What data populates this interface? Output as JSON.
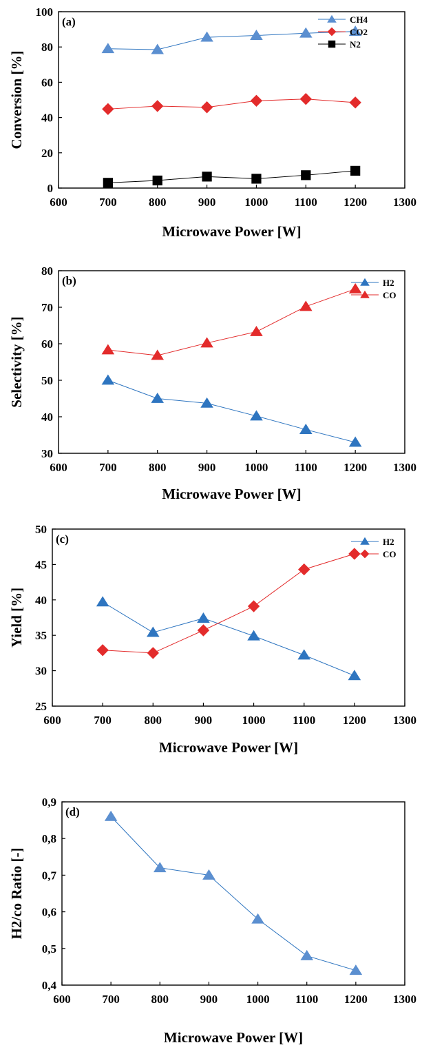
{
  "colors": {
    "blue": "#2e75c0",
    "blue_marker": "#5b8fd0",
    "red": "#e32b2b",
    "black": "#000000"
  },
  "chart_data": [
    {
      "type": "line",
      "panel_label": "(a)",
      "xlabel": "Microwave Power [W]",
      "ylabel": "Conversion [%]",
      "xlim": [
        600,
        1300
      ],
      "ylim": [
        0,
        100
      ],
      "xticks": [
        600,
        700,
        800,
        900,
        1000,
        1100,
        1200,
        1300
      ],
      "yticks": [
        0,
        20,
        40,
        60,
        80,
        100
      ],
      "xtick_labels": [
        "600",
        "700",
        "800",
        "900",
        "1000",
        "1100",
        "1200",
        "1300"
      ],
      "ytick_labels": [
        "0",
        "20",
        "40",
        "60",
        "80",
        "100"
      ],
      "legend_position": "top-right",
      "x": [
        700,
        800,
        900,
        1000,
        1100,
        1200
      ],
      "series": [
        {
          "name": "CH4",
          "values": [
            79,
            78.5,
            85.5,
            86.5,
            87.8,
            88.8
          ],
          "marker": "triangle",
          "color": "#5b8fd0",
          "line_color": "#2e75c0"
        },
        {
          "name": "CO2",
          "values": [
            44.8,
            46.5,
            45.8,
            49.5,
            50.5,
            48.5
          ],
          "marker": "diamond",
          "color": "#e32b2b",
          "line_color": "#e32b2b"
        },
        {
          "name": "N2",
          "values": [
            3,
            4.3,
            6.5,
            5.3,
            7.3,
            9.8
          ],
          "marker": "square",
          "color": "#000000",
          "line_color": "#000000"
        }
      ]
    },
    {
      "type": "line",
      "panel_label": "(b)",
      "xlabel": "Microwave Power [W]",
      "ylabel": "Selectivity [%]",
      "xlim": [
        600,
        1300
      ],
      "ylim": [
        30,
        80
      ],
      "xticks": [
        600,
        700,
        800,
        900,
        1000,
        1100,
        1200,
        1300
      ],
      "yticks": [
        30,
        40,
        50,
        60,
        70,
        80
      ],
      "xtick_labels": [
        "600",
        "700",
        "800",
        "900",
        "1000",
        "1100",
        "1200",
        "1300"
      ],
      "ytick_labels": [
        "30",
        "40",
        "50",
        "60",
        "70",
        "80"
      ],
      "legend_position": "top-right",
      "x": [
        700,
        800,
        900,
        1000,
        1100,
        1200
      ],
      "series": [
        {
          "name": "H2",
          "values": [
            50,
            45,
            43.7,
            40.2,
            36.5,
            33
          ],
          "marker": "triangle",
          "color": "#2e75c0",
          "line_color": "#2e75c0"
        },
        {
          "name": "CO",
          "values": [
            58.3,
            56.8,
            60.2,
            63.3,
            70.2,
            75
          ],
          "marker": "triangle",
          "color": "#e32b2b",
          "line_color": "#e32b2b"
        }
      ]
    },
    {
      "type": "line",
      "panel_label": "(c)",
      "xlabel": "Microwave Power [W]",
      "ylabel": "Yield [%]",
      "xlim": [
        600,
        1300
      ],
      "ylim": [
        25,
        50
      ],
      "xticks": [
        600,
        700,
        800,
        900,
        1000,
        1100,
        1200,
        1300
      ],
      "yticks": [
        25,
        30,
        35,
        40,
        45,
        50
      ],
      "xtick_labels": [
        "600",
        "700",
        "800",
        "900",
        "1000",
        "1100",
        "1200",
        "1300"
      ],
      "ytick_labels": [
        "25",
        "30",
        "35",
        "40",
        "45",
        "50"
      ],
      "legend_position": "top-right",
      "x": [
        700,
        800,
        900,
        1000,
        1100,
        1200
      ],
      "series": [
        {
          "name": "H2",
          "values": [
            39.7,
            35.4,
            37.4,
            34.9,
            32.2,
            29.3
          ],
          "marker": "triangle",
          "color": "#2e75c0",
          "line_color": "#2e75c0"
        },
        {
          "name": "CO",
          "values": [
            32.9,
            32.5,
            35.7,
            39.1,
            44.3,
            46.5
          ],
          "marker": "diamond",
          "color": "#e32b2b",
          "line_color": "#e32b2b"
        }
      ]
    },
    {
      "type": "line",
      "panel_label": "(d)",
      "xlabel": "Microwave Power [W]",
      "ylabel": "H2/co Ratio [-]",
      "xlim": [
        600,
        1300
      ],
      "ylim": [
        0.4,
        0.9
      ],
      "xticks": [
        600,
        700,
        800,
        900,
        1000,
        1100,
        1200,
        1300
      ],
      "yticks": [
        0.4,
        0.5,
        0.6,
        0.7,
        0.8,
        0.9
      ],
      "xtick_labels": [
        "600",
        "700",
        "800",
        "900",
        "1000",
        "1100",
        "1200",
        "1300"
      ],
      "ytick_labels": [
        "0,4",
        "0,5",
        "0,6",
        "0,7",
        "0,8",
        "0,9"
      ],
      "legend_position": "none",
      "x": [
        700,
        800,
        900,
        1000,
        1100,
        1200
      ],
      "series": [
        {
          "name": "",
          "values": [
            0.86,
            0.72,
            0.7,
            0.58,
            0.48,
            0.44
          ],
          "marker": "triangle",
          "color": "#5b8fd0",
          "line_color": "#2e75c0"
        }
      ]
    }
  ]
}
